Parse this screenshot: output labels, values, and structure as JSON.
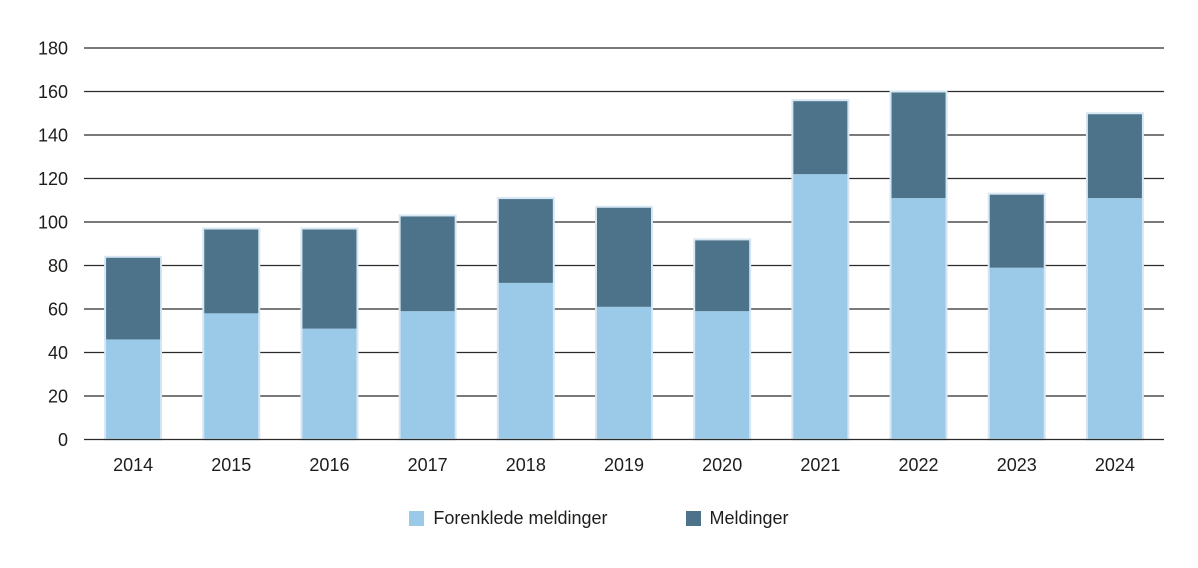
{
  "chart_data": {
    "type": "bar",
    "stacked": true,
    "title": "",
    "xlabel": "",
    "ylabel": "",
    "categories": [
      "2014",
      "2015",
      "2016",
      "2017",
      "2018",
      "2019",
      "2020",
      "2021",
      "2022",
      "2023",
      "2024"
    ],
    "series": [
      {
        "name": "Forenklede meldinger",
        "color": "#9BCAE9",
        "values": [
          46,
          58,
          51,
          59,
          72,
          61,
          59,
          122,
          111,
          79,
          111
        ]
      },
      {
        "name": "Meldinger",
        "color": "#4C7389",
        "values": [
          38,
          39,
          46,
          44,
          39,
          46,
          33,
          34,
          49,
          34,
          39
        ]
      }
    ],
    "totals": [
      84,
      97,
      97,
      103,
      111,
      107,
      92,
      156,
      160,
      113,
      150
    ],
    "ylim": [
      0,
      180
    ],
    "y_ticks": [
      0,
      20,
      40,
      60,
      80,
      100,
      120,
      140,
      160,
      180
    ],
    "grid": true,
    "legend_position": "bottom"
  },
  "colors": {
    "background": "#FFFFFF",
    "grid": "#2B2B2B",
    "text": "#1D1D1B",
    "bar_stroke": "#D6E7F3"
  }
}
